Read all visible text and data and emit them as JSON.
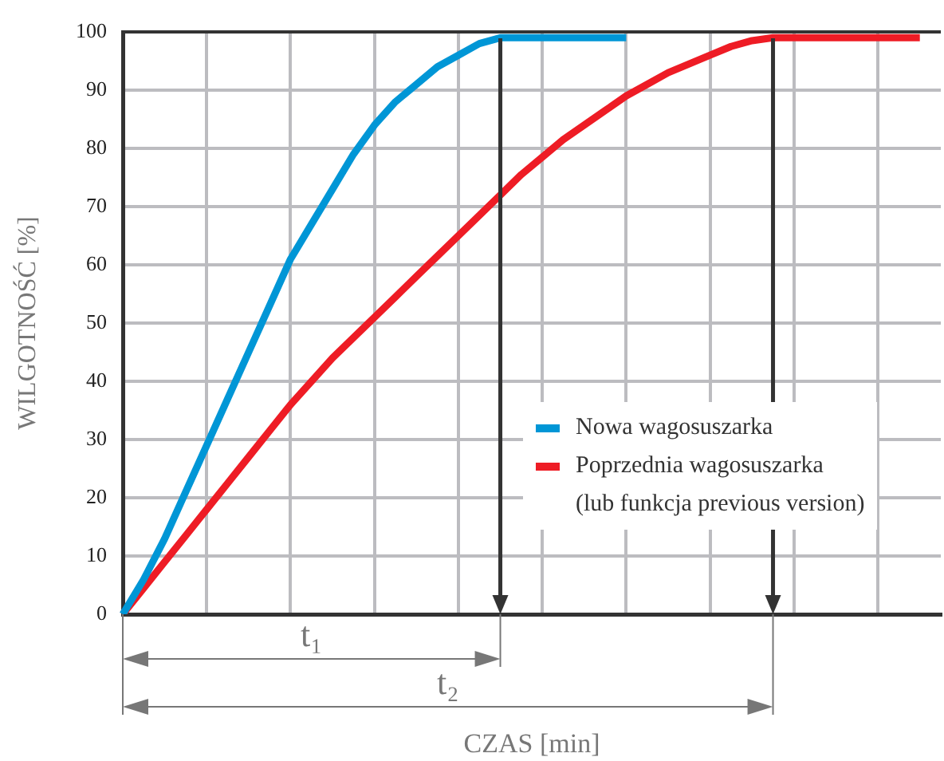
{
  "chart_data": {
    "type": "line",
    "xlabel": "CZAS [min]",
    "ylabel": "WILGOTNOŚĆ [%]",
    "categories": [
      null,
      null,
      null,
      null,
      null,
      null,
      null,
      null,
      null,
      null,
      null,
      null,
      null,
      null,
      null,
      null,
      null,
      null,
      null,
      null,
      null,
      null,
      null,
      null,
      null,
      null,
      null,
      null,
      null,
      null,
      null,
      null,
      null,
      null,
      null,
      null,
      null,
      null,
      null,
      null
    ],
    "ylim": [
      0,
      100
    ],
    "yticks": [
      0,
      10,
      20,
      30,
      40,
      50,
      60,
      70,
      80,
      90,
      100
    ],
    "tick_labels": "y",
    "grid": true,
    "legend": "bottom right",
    "marker": "none",
    "line_style": "solid",
    "series": [
      {
        "name": "Nowa wagosuszarka",
        "color": "#0096d6",
        "values": [
          0,
          6,
          13,
          21,
          29,
          37,
          45,
          53,
          61,
          67,
          73,
          79,
          84,
          88,
          91,
          94,
          96,
          98,
          99,
          99,
          99,
          99,
          99,
          99,
          99,
          null,
          null,
          null,
          null,
          null,
          null,
          null,
          null,
          null,
          null,
          null,
          null,
          null,
          null,
          null
        ]
      },
      {
        "name": "Poprzednia wagosuszarka\n(lub funkcja previous version)",
        "color": "#ee1c25",
        "values": [
          0,
          4.5,
          9,
          13.5,
          18,
          22.5,
          27,
          31.5,
          36,
          40,
          44,
          47.5,
          51,
          54.5,
          58,
          61.5,
          65,
          68.5,
          72,
          75.5,
          78.5,
          81.5,
          84,
          86.5,
          89,
          91,
          93,
          94.5,
          96,
          97.5,
          98.5,
          99,
          99,
          99,
          99,
          99,
          99,
          99,
          99,
          null
        ]
      }
    ],
    "annotations": [
      "t₁",
      "t₂"
    ]
  }
}
